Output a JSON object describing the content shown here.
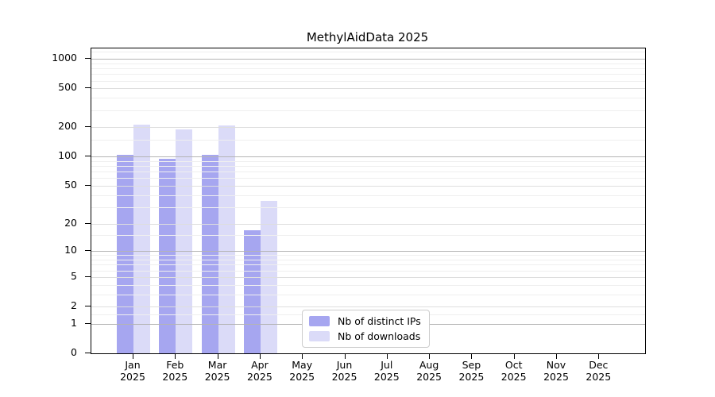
{
  "chart_data": {
    "type": "bar",
    "title": "MethylAidData 2025",
    "xlabel": "",
    "ylabel": "",
    "yscale": "log1p",
    "ylim": [
      0,
      1281
    ],
    "yticks": [
      0,
      1,
      2,
      5,
      10,
      20,
      50,
      100,
      200,
      500,
      1000
    ],
    "minor_gridlines": [
      1.5,
      3,
      4,
      6,
      7,
      8,
      9,
      15,
      30,
      40,
      60,
      70,
      80,
      90,
      150,
      300,
      400,
      600,
      700,
      800,
      900,
      1200
    ],
    "categories": [
      "Jan",
      "Feb",
      "Mar",
      "Apr",
      "May",
      "Jun",
      "Jul",
      "Aug",
      "Sep",
      "Oct",
      "Nov",
      "Dec"
    ],
    "year_label": "2025",
    "grid": true,
    "legend_position": "bottom-center-inside",
    "series": [
      {
        "name": "Nb of distinct IPs",
        "color": "#a6a6f0",
        "values": [
          105,
          96,
          105,
          17,
          null,
          null,
          null,
          null,
          null,
          null,
          null,
          null
        ]
      },
      {
        "name": "Nb of downloads",
        "color": "#dbdbf8",
        "values": [
          215,
          190,
          210,
          35,
          null,
          null,
          null,
          null,
          null,
          null,
          null,
          null
        ]
      }
    ],
    "grid_colors": {
      "power": "#b4b4b4",
      "major": "#dedede",
      "minor": "#efefef"
    }
  }
}
